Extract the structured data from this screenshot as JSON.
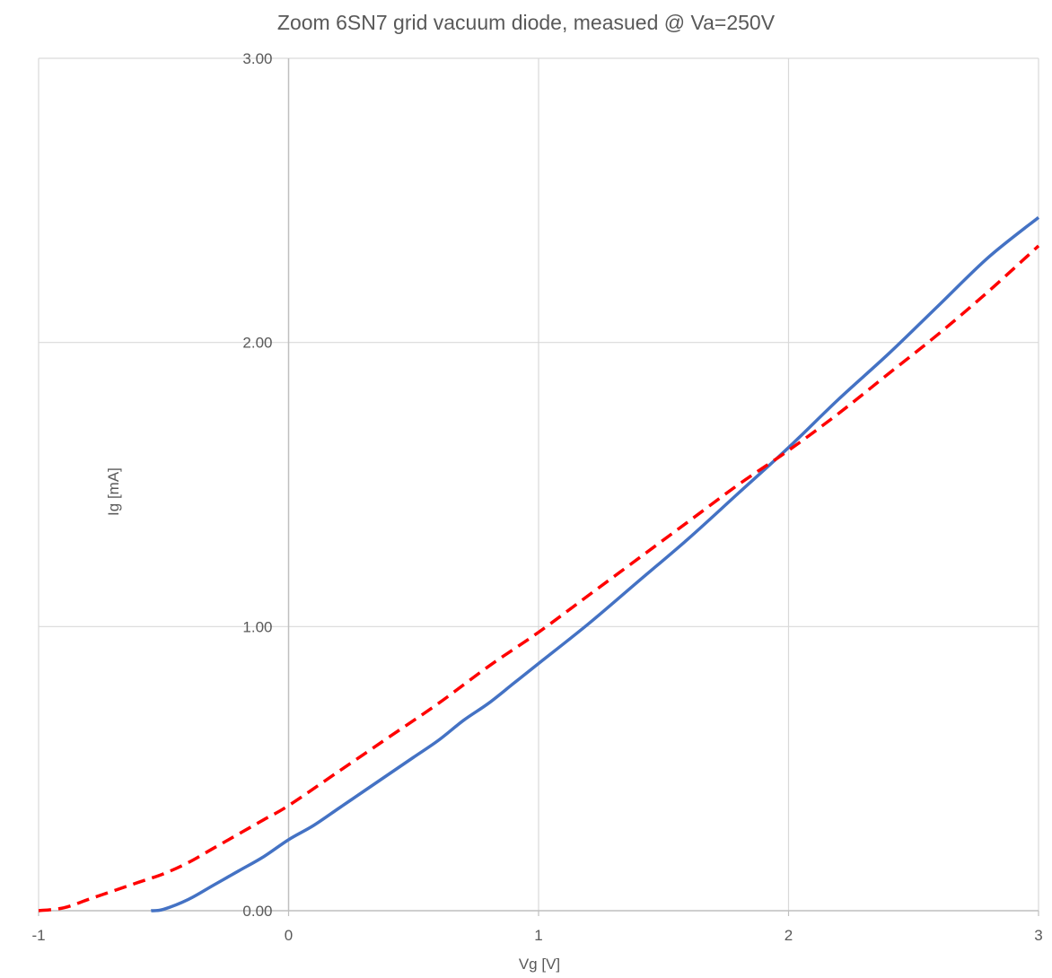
{
  "chart_data": {
    "type": "line",
    "title": "Zoom 6SN7 grid vacuum diode, measued @ Va=250V",
    "xlabel": "Vg [V]",
    "ylabel": "Ig [mA]",
    "xlim": [
      -1,
      3
    ],
    "ylim": [
      0,
      3
    ],
    "x_ticks": [
      -1,
      0,
      1,
      2,
      3
    ],
    "x_tick_labels": [
      "-1",
      "0",
      "1",
      "2",
      "3"
    ],
    "y_ticks": [
      0,
      1,
      2,
      3
    ],
    "y_tick_labels": [
      "0.00",
      "1.00",
      "2.00",
      "3.00"
    ],
    "grid": true,
    "legend": "none",
    "series": [
      {
        "color": "#4472C4",
        "style": "solid",
        "x": [
          -0.55,
          -0.5,
          -0.4,
          -0.3,
          -0.2,
          -0.1,
          0.0,
          0.1,
          0.2,
          0.3,
          0.4,
          0.5,
          0.6,
          0.7,
          0.8,
          0.9,
          1.0,
          1.2,
          1.4,
          1.6,
          1.8,
          2.0,
          2.2,
          2.4,
          2.6,
          2.8,
          3.0
        ],
        "values": [
          0.0,
          0.005,
          0.04,
          0.09,
          0.14,
          0.19,
          0.25,
          0.3,
          0.36,
          0.42,
          0.48,
          0.54,
          0.6,
          0.67,
          0.73,
          0.8,
          0.87,
          1.01,
          1.16,
          1.31,
          1.47,
          1.63,
          1.8,
          1.96,
          2.13,
          2.3,
          2.44
        ]
      },
      {
        "color": "#FF0000",
        "style": "dashed",
        "x": [
          -1.0,
          -0.9,
          -0.8,
          -0.7,
          -0.6,
          -0.5,
          -0.4,
          -0.3,
          -0.2,
          -0.1,
          0.0,
          0.2,
          0.4,
          0.6,
          0.8,
          1.0,
          1.2,
          1.4,
          1.6,
          1.8,
          2.0,
          2.2,
          2.4,
          2.6,
          2.8,
          3.0
        ],
        "values": [
          0.0,
          0.01,
          0.04,
          0.07,
          0.1,
          0.13,
          0.17,
          0.22,
          0.27,
          0.32,
          0.37,
          0.49,
          0.61,
          0.73,
          0.86,
          0.98,
          1.11,
          1.24,
          1.37,
          1.5,
          1.62,
          1.75,
          1.89,
          2.03,
          2.18,
          2.34
        ]
      }
    ]
  }
}
